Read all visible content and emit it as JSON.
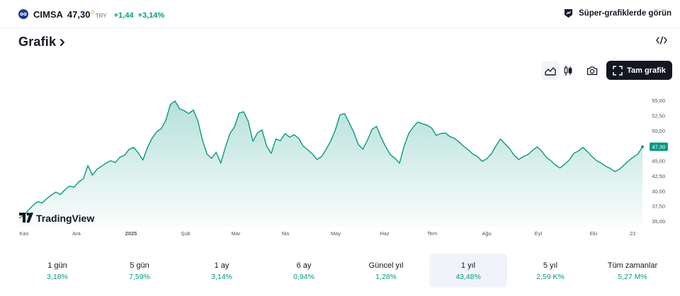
{
  "header": {
    "symbol": "CIMSA",
    "price": "47,30",
    "price_superscript": "0",
    "currency": "TRY",
    "change": "+1,44",
    "change_percent": "+3,14%",
    "super_charts_label": "Süper-grafiklerde görün",
    "colors": {
      "up": "#089981",
      "price_flag": "#f7a600"
    }
  },
  "section": {
    "title": "Grafik",
    "title_chevron_icon": "chevron-right-icon",
    "embed_icon": "code-embed-icon"
  },
  "toolbar": {
    "area_icon": "area-chart-icon",
    "candle_icon": "candlestick-icon",
    "camera_icon": "camera-icon",
    "full_label": "Tam grafik",
    "full_icon": "fullscreen-icon"
  },
  "chart_data": {
    "type": "area",
    "watermark": "TradingView",
    "line_color": "#089981",
    "y_range": [
      35,
      57
    ],
    "y_ticks": [
      "55,00",
      "52,50",
      "50,00",
      "47,50",
      "45,00",
      "42,50",
      "40,00",
      "37,50",
      "35,00"
    ],
    "last_price_label": "47,30",
    "x_ticks": [
      "Kas",
      "Ara",
      "2025",
      "Şub",
      "Mar",
      "Nis",
      "May",
      "Haz",
      "Tem",
      "Ağu",
      "Eyl",
      "Eki",
      "23"
    ],
    "values": [
      35.5,
      35.9,
      36.8,
      37.6,
      38.2,
      38.0,
      38.7,
      39.3,
      39.8,
      39.4,
      40.2,
      40.8,
      40.6,
      41.5,
      42.0,
      44.2,
      42.6,
      43.6,
      44.1,
      44.6,
      45.0,
      44.7,
      45.6,
      45.9,
      46.9,
      47.2,
      46.3,
      45.1,
      47.2,
      48.7,
      49.8,
      50.3,
      51.7,
      54.3,
      54.9,
      53.6,
      53.3,
      52.8,
      53.4,
      51.6,
      48.4,
      46.1,
      45.4,
      46.4,
      44.6,
      47.2,
      49.5,
      50.6,
      52.9,
      53.1,
      51.5,
      48.2,
      49.6,
      50.1,
      47.4,
      46.2,
      48.6,
      48.3,
      49.5,
      48.9,
      49.3,
      48.7,
      47.4,
      46.8,
      46.1,
      45.2,
      45.7,
      46.9,
      48.3,
      50.1,
      52.6,
      52.8,
      51.3,
      49.7,
      47.7,
      46.9,
      48.4,
      50.2,
      50.7,
      48.8,
      47.3,
      46.0,
      45.4,
      44.6,
      47.4,
      49.5,
      50.6,
      51.4,
      51.1,
      50.9,
      50.4,
      49.2,
      49.5,
      49.6,
      49.0,
      48.7,
      48.1,
      47.4,
      46.8,
      46.1,
      45.7,
      44.9,
      45.3,
      46.1,
      47.4,
      48.6,
      47.8,
      47.0,
      45.9,
      45.2,
      45.7,
      46.0,
      46.7,
      47.3,
      46.6,
      45.6,
      45.0,
      44.3,
      43.8,
      44.4,
      45.1,
      46.2,
      46.6,
      47.2,
      46.5,
      45.7,
      45.0,
      44.6,
      44.1,
      43.7,
      43.2,
      43.6,
      44.3,
      45.0,
      45.6,
      46.1,
      47.3
    ]
  },
  "periods": [
    {
      "label": "1 gün",
      "value": "3,18%"
    },
    {
      "label": "5 gün",
      "value": "7,59%"
    },
    {
      "label": "1 ay",
      "value": "3,14%"
    },
    {
      "label": "6 ay",
      "value": "0,94%"
    },
    {
      "label": "Güncel yıl",
      "value": "1,28%"
    },
    {
      "label": "1 yıl",
      "value": "43,48%",
      "active": true
    },
    {
      "label": "5 yıl",
      "value": "2,59 K%"
    },
    {
      "label": "Tüm zamanlar",
      "value": "5,27 M%"
    }
  ]
}
